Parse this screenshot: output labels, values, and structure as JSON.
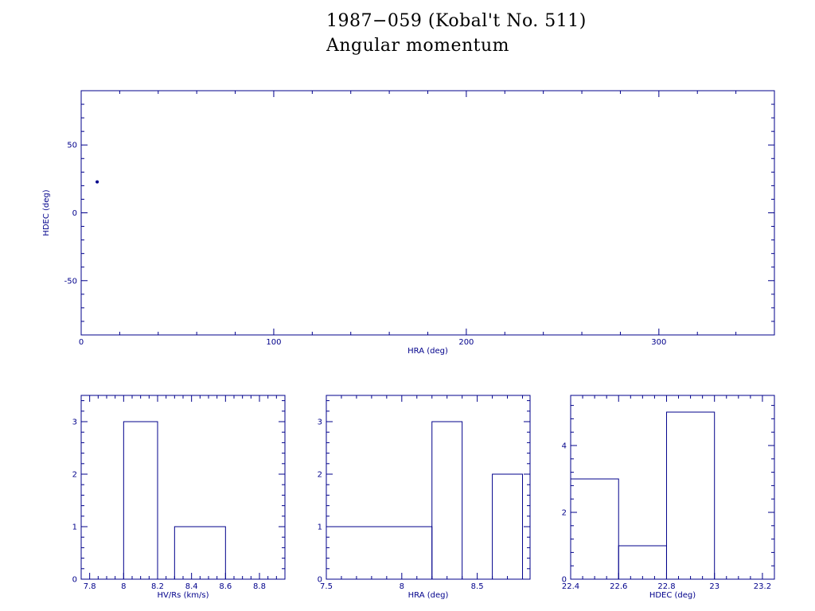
{
  "title_line1": "1987−059 (Kobal't No. 511)",
  "title_line2": "Angular momentum",
  "colors": {
    "axes": "#00008b",
    "title": "#000000",
    "background": "#ffffff"
  },
  "chart_data": [
    {
      "type": "scatter",
      "xlabel": "HRA (deg)",
      "ylabel": "HDEC (deg)",
      "xlim": [
        0,
        360
      ],
      "ylim": [
        -90,
        90
      ],
      "xticks": [
        0,
        100,
        200,
        300
      ],
      "yticks": [
        -50,
        0,
        50
      ],
      "points": [
        {
          "x": 8.3,
          "y": 22.8
        }
      ]
    },
    {
      "type": "bar",
      "histogram": true,
      "xlabel": "HV/Rs (km/s)",
      "xlim": [
        7.75,
        8.95
      ],
      "ylim": [
        0,
        3.5
      ],
      "xticks": [
        7.8,
        8,
        8.2,
        8.4,
        8.6,
        8.8
      ],
      "yticks": [
        0,
        1,
        2,
        3
      ],
      "bins": [
        {
          "from": 8.0,
          "to": 8.2,
          "count": 3
        },
        {
          "from": 8.3,
          "to": 8.6,
          "count": 1
        }
      ]
    },
    {
      "type": "bar",
      "histogram": true,
      "xlabel": "HRA (deg)",
      "xlim": [
        7.5,
        8.85
      ],
      "ylim": [
        0,
        3.5
      ],
      "xticks": [
        7.5,
        8,
        8.5
      ],
      "yticks": [
        0,
        1,
        2,
        3
      ],
      "bins": [
        {
          "from": 7.5,
          "to": 8.2,
          "count": 1
        },
        {
          "from": 8.2,
          "to": 8.4,
          "count": 3
        },
        {
          "from": 8.6,
          "to": 8.8,
          "count": 2
        }
      ]
    },
    {
      "type": "bar",
      "histogram": true,
      "xlabel": "HDEC (deg)",
      "xlim": [
        22.4,
        23.25
      ],
      "ylim": [
        0,
        5.5
      ],
      "xticks": [
        22.4,
        22.6,
        22.8,
        23,
        23.2
      ],
      "yticks": [
        0,
        2,
        4
      ],
      "bins": [
        {
          "from": 22.4,
          "to": 22.6,
          "count": 3
        },
        {
          "from": 22.6,
          "to": 22.8,
          "count": 1
        },
        {
          "from": 22.8,
          "to": 23.0,
          "count": 5
        }
      ]
    }
  ]
}
